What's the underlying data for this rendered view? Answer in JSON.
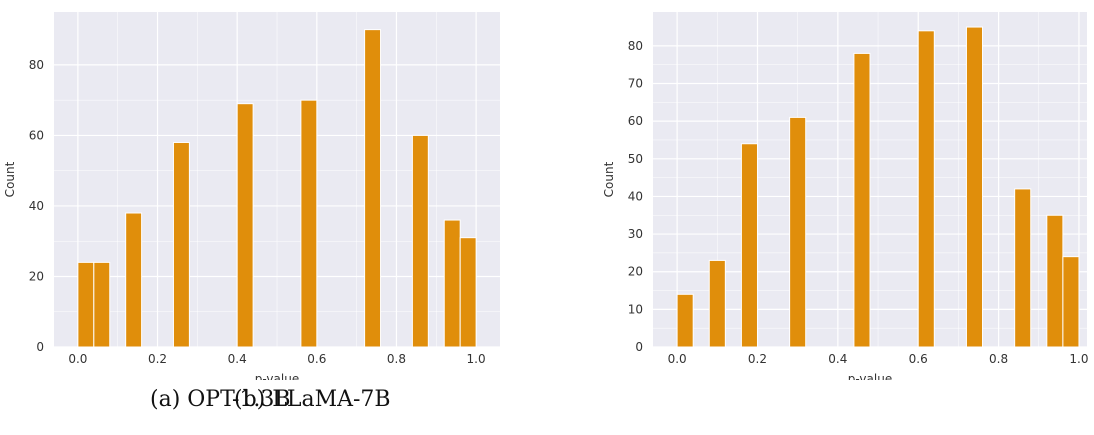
{
  "chart_data": [
    {
      "type": "bar",
      "subtype": "histogram",
      "caption": "(a) OPT-1.3B",
      "xlabel": "p-value",
      "ylabel": "Count",
      "xlim": [
        -0.06,
        1.06
      ],
      "ylim": [
        0,
        95
      ],
      "xticks": [
        "0.0",
        "0.2",
        "0.4",
        "0.6",
        "0.8",
        "1.0"
      ],
      "yticks": [
        "0",
        "20",
        "40",
        "60",
        "80"
      ],
      "bin_width": 0.04,
      "bin_starts": [
        0.0,
        0.04,
        0.12,
        0.24,
        0.4,
        0.56,
        0.72,
        0.84,
        0.92,
        0.96
      ],
      "values": [
        24,
        24,
        38,
        58,
        69,
        70,
        90,
        60,
        36,
        31
      ],
      "bar_color": "#e08e0b",
      "background": "#eaeaf2",
      "grid": true
    },
    {
      "type": "bar",
      "subtype": "histogram",
      "caption": "(b) LLaMA-7B",
      "xlabel": "p-value",
      "ylabel": "Count",
      "xlim": [
        -0.06,
        1.02
      ],
      "ylim": [
        0,
        89
      ],
      "xticks": [
        "0.0",
        "0.2",
        "0.4",
        "0.6",
        "0.8",
        "1.0"
      ],
      "yticks": [
        "0",
        "10",
        "20",
        "30",
        "40",
        "50",
        "60",
        "70",
        "80"
      ],
      "bin_width": 0.04,
      "bin_starts": [
        0.0,
        0.08,
        0.16,
        0.28,
        0.44,
        0.6,
        0.72,
        0.84,
        0.92,
        0.96
      ],
      "values": [
        14,
        23,
        54,
        61,
        78,
        84,
        85,
        42,
        35,
        24
      ],
      "bar_color": "#e08e0b",
      "background": "#eaeaf2",
      "grid": true
    }
  ]
}
